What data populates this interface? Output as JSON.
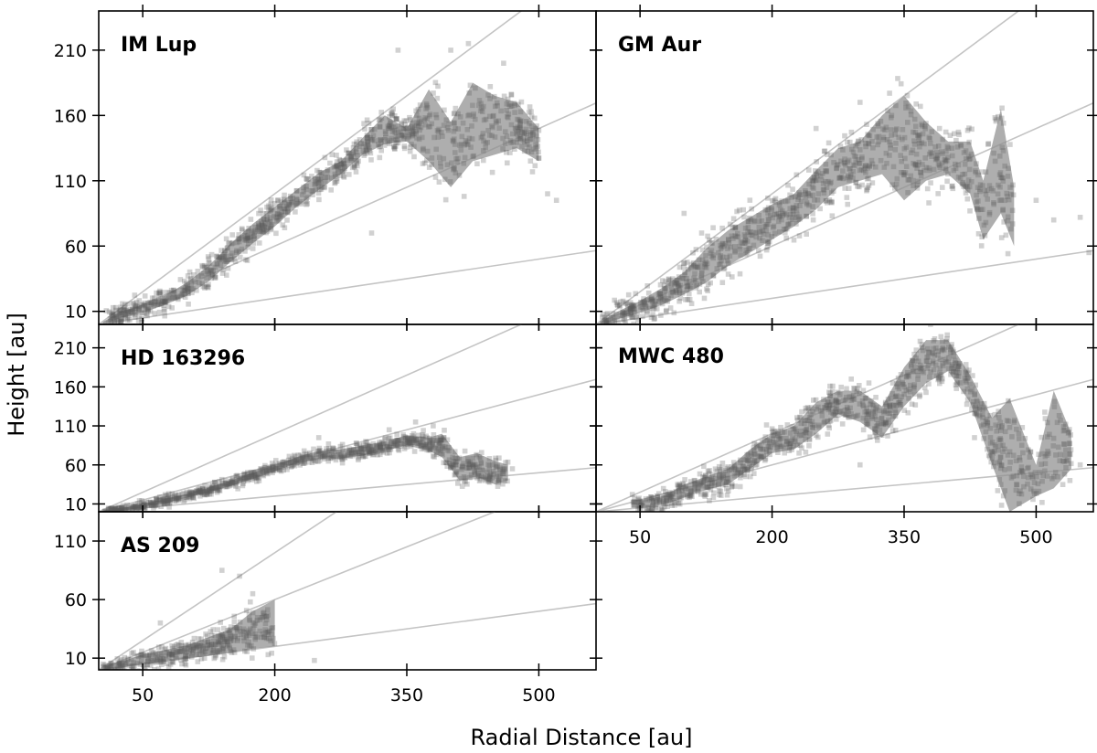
{
  "figure": {
    "xlabel": "Radial Distance [au]",
    "ylabel": "Height [au]"
  },
  "chart_data": [
    {
      "type": "scatter",
      "title": "IM Lup",
      "xlim": [
        0,
        565
      ],
      "ylim": [
        0,
        240
      ],
      "yticks": [
        10,
        60,
        110,
        160,
        210
      ],
      "xticks": [
        50,
        200,
        350,
        500
      ],
      "ref_slopes": [
        0.1,
        0.3,
        0.5
      ],
      "band_lower": [
        [
          5,
          0
        ],
        [
          25,
          5
        ],
        [
          50,
          9
        ],
        [
          75,
          15
        ],
        [
          100,
          22
        ],
        [
          125,
          33
        ],
        [
          150,
          48
        ],
        [
          175,
          62
        ],
        [
          200,
          75
        ],
        [
          225,
          90
        ],
        [
          250,
          103
        ],
        [
          275,
          115
        ],
        [
          300,
          130
        ],
        [
          325,
          138
        ],
        [
          350,
          140
        ],
        [
          375,
          125
        ],
        [
          400,
          105
        ],
        [
          425,
          125
        ],
        [
          450,
          130
        ],
        [
          475,
          135
        ],
        [
          500,
          125
        ]
      ],
      "band_upper": [
        [
          5,
          2
        ],
        [
          25,
          10
        ],
        [
          50,
          15
        ],
        [
          75,
          22
        ],
        [
          100,
          32
        ],
        [
          125,
          45
        ],
        [
          150,
          62
        ],
        [
          175,
          77
        ],
        [
          200,
          90
        ],
        [
          225,
          103
        ],
        [
          250,
          116
        ],
        [
          275,
          125
        ],
        [
          300,
          143
        ],
        [
          325,
          160
        ],
        [
          350,
          150
        ],
        [
          375,
          180
        ],
        [
          400,
          155
        ],
        [
          425,
          185
        ],
        [
          450,
          175
        ],
        [
          475,
          170
        ],
        [
          500,
          150
        ]
      ],
      "scatter_seed": 11,
      "scatter_noise": 9,
      "scatter_extra": [
        [
          400,
          210
        ],
        [
          420,
          215
        ],
        [
          340,
          210
        ],
        [
          460,
          200
        ],
        [
          510,
          100
        ],
        [
          520,
          95
        ],
        [
          310,
          70
        ],
        [
          120,
          45
        ]
      ]
    },
    {
      "type": "scatter",
      "title": "GM Aur",
      "xlim": [
        0,
        565
      ],
      "ylim": [
        0,
        240
      ],
      "yticks": [
        10,
        60,
        110,
        160,
        210
      ],
      "xticks": [
        50,
        200,
        350,
        500
      ],
      "ref_slopes": [
        0.1,
        0.3,
        0.5
      ],
      "band_lower": [
        [
          5,
          0
        ],
        [
          25,
          4
        ],
        [
          50,
          9
        ],
        [
          75,
          15
        ],
        [
          100,
          23
        ],
        [
          125,
          32
        ],
        [
          150,
          45
        ],
        [
          175,
          55
        ],
        [
          200,
          65
        ],
        [
          225,
          75
        ],
        [
          250,
          88
        ],
        [
          275,
          105
        ],
        [
          300,
          110
        ],
        [
          325,
          115
        ],
        [
          350,
          95
        ],
        [
          375,
          110
        ],
        [
          400,
          115
        ],
        [
          425,
          100
        ],
        [
          440,
          65
        ],
        [
          460,
          85
        ],
        [
          475,
          60
        ]
      ],
      "band_upper": [
        [
          5,
          2
        ],
        [
          25,
          10
        ],
        [
          50,
          18
        ],
        [
          75,
          28
        ],
        [
          100,
          40
        ],
        [
          125,
          58
        ],
        [
          150,
          72
        ],
        [
          175,
          82
        ],
        [
          200,
          92
        ],
        [
          225,
          100
        ],
        [
          250,
          118
        ],
        [
          275,
          135
        ],
        [
          300,
          140
        ],
        [
          325,
          160
        ],
        [
          350,
          175
        ],
        [
          375,
          155
        ],
        [
          400,
          140
        ],
        [
          425,
          140
        ],
        [
          440,
          110
        ],
        [
          460,
          165
        ],
        [
          475,
          105
        ]
      ],
      "scatter_seed": 23,
      "scatter_noise": 12,
      "scatter_extra": [
        [
          500,
          95
        ],
        [
          520,
          80
        ],
        [
          550,
          82
        ],
        [
          560,
          55
        ],
        [
          300,
          170
        ],
        [
          250,
          150
        ],
        [
          100,
          85
        ],
        [
          120,
          70
        ]
      ]
    },
    {
      "type": "scatter",
      "title": "HD 163296",
      "xlim": [
        0,
        565
      ],
      "ylim": [
        0,
        240
      ],
      "yticks": [
        10,
        60,
        110,
        160,
        210
      ],
      "xticks": [
        50,
        200,
        350,
        500
      ],
      "ref_slopes": [
        0.1,
        0.3,
        0.5
      ],
      "band_lower": [
        [
          5,
          0
        ],
        [
          25,
          2
        ],
        [
          50,
          6
        ],
        [
          75,
          11
        ],
        [
          100,
          18
        ],
        [
          125,
          25
        ],
        [
          150,
          33
        ],
        [
          175,
          42
        ],
        [
          200,
          52
        ],
        [
          225,
          62
        ],
        [
          250,
          68
        ],
        [
          275,
          68
        ],
        [
          300,
          72
        ],
        [
          325,
          78
        ],
        [
          350,
          85
        ],
        [
          375,
          78
        ],
        [
          390,
          70
        ],
        [
          410,
          40
        ],
        [
          430,
          45
        ],
        [
          450,
          35
        ],
        [
          465,
          40
        ]
      ],
      "band_upper": [
        [
          5,
          1
        ],
        [
          25,
          4
        ],
        [
          50,
          10
        ],
        [
          75,
          16
        ],
        [
          100,
          23
        ],
        [
          125,
          31
        ],
        [
          150,
          40
        ],
        [
          175,
          50
        ],
        [
          200,
          60
        ],
        [
          225,
          70
        ],
        [
          250,
          78
        ],
        [
          275,
          80
        ],
        [
          300,
          85
        ],
        [
          325,
          90
        ],
        [
          350,
          98
        ],
        [
          375,
          95
        ],
        [
          390,
          100
        ],
        [
          410,
          70
        ],
        [
          430,
          75
        ],
        [
          450,
          65
        ],
        [
          465,
          60
        ]
      ],
      "scatter_seed": 37,
      "scatter_noise": 6,
      "scatter_extra": [
        [
          360,
          115
        ],
        [
          380,
          110
        ],
        [
          330,
          105
        ],
        [
          250,
          95
        ],
        [
          470,
          55
        ]
      ]
    },
    {
      "type": "scatter",
      "title": "MWC 480",
      "xlim": [
        0,
        565
      ],
      "ylim": [
        0,
        240
      ],
      "yticks": [
        10,
        60,
        110,
        160,
        210
      ],
      "xticks": [
        50,
        200,
        350,
        500
      ],
      "ref_slopes": [
        0.1,
        0.3,
        0.5
      ],
      "band_lower": [
        [
          40,
          5
        ],
        [
          60,
          6
        ],
        [
          80,
          10
        ],
        [
          100,
          18
        ],
        [
          125,
          28
        ],
        [
          150,
          35
        ],
        [
          175,
          55
        ],
        [
          200,
          75
        ],
        [
          225,
          80
        ],
        [
          250,
          100
        ],
        [
          275,
          125
        ],
        [
          300,
          115
        ],
        [
          325,
          95
        ],
        [
          350,
          135
        ],
        [
          375,
          165
        ],
        [
          400,
          180
        ],
        [
          425,
          140
        ],
        [
          450,
          60
        ],
        [
          470,
          0
        ],
        [
          500,
          20
        ],
        [
          520,
          30
        ],
        [
          540,
          55
        ]
      ],
      "band_upper": [
        [
          40,
          15
        ],
        [
          60,
          16
        ],
        [
          80,
          22
        ],
        [
          100,
          35
        ],
        [
          125,
          45
        ],
        [
          150,
          55
        ],
        [
          175,
          80
        ],
        [
          200,
          100
        ],
        [
          225,
          110
        ],
        [
          250,
          140
        ],
        [
          275,
          155
        ],
        [
          300,
          155
        ],
        [
          325,
          135
        ],
        [
          350,
          185
        ],
        [
          375,
          220
        ],
        [
          400,
          220
        ],
        [
          425,
          175
        ],
        [
          450,
          120
        ],
        [
          470,
          145
        ],
        [
          500,
          60
        ],
        [
          520,
          155
        ],
        [
          540,
          100
        ]
      ],
      "scatter_seed": 53,
      "scatter_noise": 12,
      "scatter_extra": [
        [
          380,
          240
        ],
        [
          310,
          165
        ],
        [
          290,
          170
        ],
        [
          300,
          60
        ],
        [
          430,
          95
        ],
        [
          520,
          45
        ],
        [
          550,
          60
        ]
      ]
    },
    {
      "type": "scatter",
      "title": "AS 209",
      "xlim": [
        0,
        565
      ],
      "ylim": [
        0,
        135
      ],
      "yticks": [
        10,
        60,
        110
      ],
      "xticks": [
        50,
        200,
        350,
        500
      ],
      "ref_slopes": [
        0.1,
        0.3,
        0.5
      ],
      "band_lower": [
        [
          5,
          0
        ],
        [
          25,
          2
        ],
        [
          50,
          5
        ],
        [
          75,
          7
        ],
        [
          100,
          10
        ],
        [
          125,
          12
        ],
        [
          150,
          15
        ],
        [
          175,
          18
        ],
        [
          200,
          20
        ]
      ],
      "band_upper": [
        [
          5,
          4
        ],
        [
          25,
          7
        ],
        [
          50,
          13
        ],
        [
          75,
          17
        ],
        [
          100,
          21
        ],
        [
          125,
          28
        ],
        [
          150,
          35
        ],
        [
          175,
          50
        ],
        [
          200,
          60
        ]
      ],
      "scatter_seed": 71,
      "scatter_noise": 6,
      "scatter_extra": [
        [
          140,
          85
        ],
        [
          160,
          80
        ],
        [
          175,
          65
        ],
        [
          70,
          40
        ],
        [
          245,
          8
        ]
      ]
    }
  ]
}
